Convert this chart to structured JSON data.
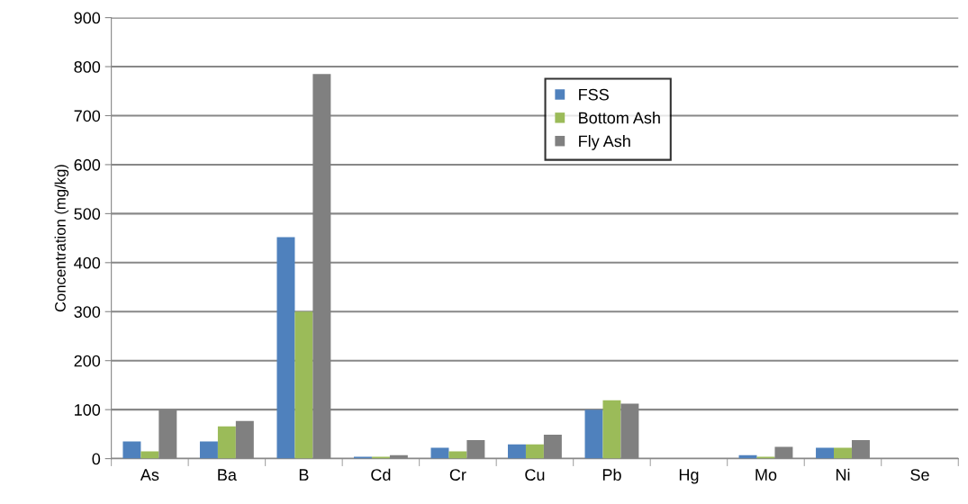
{
  "chart_data": {
    "type": "bar",
    "ylabel": "Concentration (mg/kg)",
    "categories": [
      "As",
      "Ba",
      "B",
      "Cd",
      "Cr",
      "Cu",
      "Pb",
      "Hg",
      "Mo",
      "Ni",
      "Se"
    ],
    "series": [
      {
        "name": "FSS",
        "color": "#4f81bd",
        "values": [
          35,
          35,
          452,
          4,
          22,
          29,
          100,
          0,
          7,
          22,
          0
        ]
      },
      {
        "name": "Bottom Ash",
        "color": "#9bbb59",
        "values": [
          15,
          66,
          300,
          4,
          15,
          29,
          119,
          0,
          4,
          22,
          0
        ]
      },
      {
        "name": "Fly Ash",
        "color": "#808080",
        "values": [
          100,
          77,
          785,
          7,
          38,
          49,
          112,
          0,
          24,
          38,
          0
        ]
      }
    ],
    "ylim": [
      0,
      900
    ],
    "yticks": [
      0,
      100,
      200,
      300,
      400,
      500,
      600,
      700,
      800,
      900
    ],
    "grid": "y",
    "legend": "top right"
  }
}
